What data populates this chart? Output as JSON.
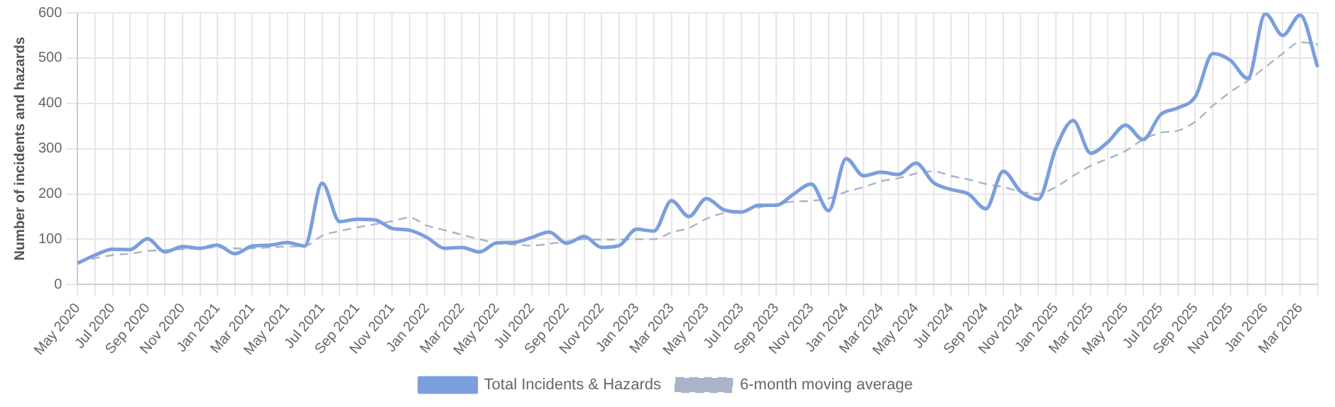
{
  "chart_data": {
    "type": "line",
    "ylabel": "Number of incidents and hazards",
    "categories": [
      "May 2020",
      null,
      "Jul 2020",
      null,
      "Sep 2020",
      null,
      "Nov 2020",
      null,
      "Jan 2021",
      null,
      "Mar 2021",
      null,
      "May 2021",
      null,
      "Jul 2021",
      null,
      "Sep 2021",
      null,
      "Nov 2021",
      null,
      "Jan 2022",
      null,
      "Mar 2022",
      null,
      "May 2022",
      null,
      "Jul 2022",
      null,
      "Sep 2022",
      null,
      "Nov 2022",
      null,
      "Jan 2023",
      null,
      "Mar 2023",
      null,
      "May 2023",
      null,
      "Jul 2023",
      null,
      "Sep 2023",
      null,
      "Nov 2023",
      null,
      "Jan 2024",
      null,
      "Mar 2024",
      null,
      "May 2024",
      null,
      "Jul 2024",
      null,
      "Sep 2024",
      null,
      "Nov 2024",
      null,
      "Jan 2025",
      null,
      "Mar 2025",
      null,
      "May 2025",
      null,
      "Jul 2025",
      null,
      "Sep 2025",
      null,
      "Nov 2025",
      null,
      "Jan 2026",
      null,
      "Mar 2026",
      null
    ],
    "series": [
      {
        "name": "Total Incidents & Hazards",
        "color": "#7b9fdc",
        "line_style": "solid",
        "values": [
          47,
          65,
          78,
          77,
          101,
          72,
          84,
          80,
          87,
          68,
          85,
          87,
          93,
          85,
          224,
          139,
          144,
          143,
          124,
          120,
          104,
          80,
          82,
          72,
          92,
          93,
          104,
          116,
          91,
          106,
          82,
          86,
          122,
          118,
          185,
          150,
          190,
          165,
          160,
          175,
          175,
          200,
          222,
          163,
          278,
          240,
          248,
          243,
          268,
          225,
          210,
          200,
          167,
          250,
          205,
          188,
          300,
          362,
          290,
          315,
          352,
          320,
          375,
          390,
          415,
          510,
          495,
          455,
          598,
          550,
          595,
          480
        ]
      },
      {
        "name": "6-month moving average",
        "color": "#a9b4c8",
        "line_style": "dashed",
        "values": [
          50,
          58,
          65,
          68,
          74,
          76,
          78,
          80,
          82,
          80,
          80,
          82,
          84,
          85,
          108,
          118,
          126,
          133,
          140,
          148,
          130,
          120,
          110,
          100,
          92,
          88,
          86,
          90,
          95,
          100,
          99,
          99,
          100,
          100,
          115,
          125,
          145,
          158,
          162,
          170,
          178,
          183,
          185,
          190,
          205,
          215,
          228,
          235,
          245,
          250,
          240,
          232,
          222,
          215,
          205,
          200,
          215,
          240,
          262,
          278,
          295,
          320,
          335,
          340,
          360,
          395,
          425,
          450,
          480,
          510,
          535,
          530
        ]
      }
    ],
    "ylim": [
      0,
      600
    ],
    "yticks": [
      0,
      100,
      200,
      300,
      400,
      500,
      600
    ],
    "grid": true,
    "legend": "bottom",
    "marker": "none"
  }
}
